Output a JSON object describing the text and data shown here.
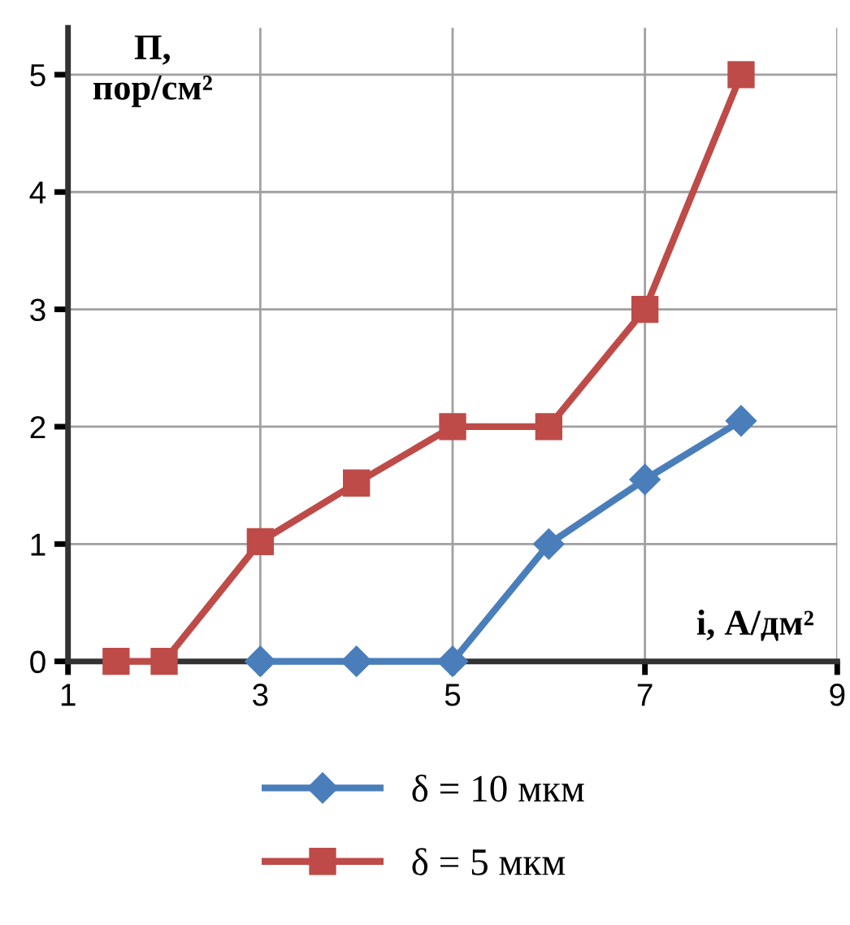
{
  "chart_data": {
    "type": "line",
    "xlabel": "i, А/дм²",
    "ylabel": "П,\nпор/см²",
    "xlim": [
      1,
      9
    ],
    "xticks": [
      1,
      3,
      5,
      7,
      9
    ],
    "ylim": [
      0,
      5.4
    ],
    "yticks": [
      0,
      1,
      2,
      3,
      4,
      5
    ],
    "grid": true,
    "legend": "bottom",
    "series": [
      {
        "name": "δ = 10 мкм",
        "color": "#4a7ebb",
        "marker": "diamond",
        "x": [
          3,
          4,
          5,
          6,
          7,
          8
        ],
        "values": [
          0,
          0,
          0,
          1.0,
          1.55,
          2.05
        ]
      },
      {
        "name": "δ = 5 мкм",
        "color": "#be4b48",
        "marker": "square",
        "x": [
          1.5,
          2,
          3,
          4,
          5,
          6,
          7,
          8
        ],
        "values": [
          0,
          0,
          1.02,
          1.52,
          2.0,
          2.0,
          3.0,
          5.0
        ]
      }
    ]
  }
}
